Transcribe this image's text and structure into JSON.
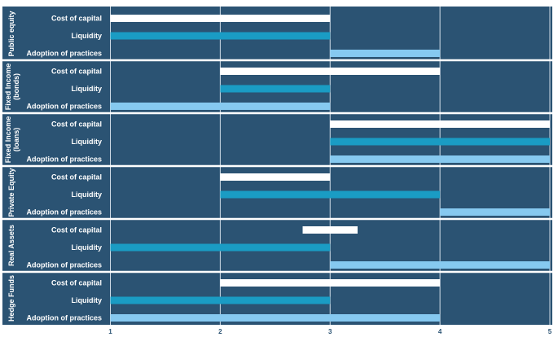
{
  "chart_data": {
    "type": "bar",
    "orientation": "horizontal floating range",
    "xlim": [
      1,
      5
    ],
    "x_ticks": [
      "1",
      "2",
      "3",
      "4",
      "5"
    ],
    "grid": true,
    "colors": {
      "background": "#2b5373",
      "Cost of capital": "#ffffff",
      "Liquidity": "#1a9cc4",
      "Adoption of practices": "#86c9f0"
    },
    "categories": [
      "Cost of capital",
      "Liquidity",
      "Adoption of practices"
    ],
    "groups": [
      {
        "name": "Public equity",
        "bars": [
          {
            "category": "Cost of capital",
            "start": 1,
            "end": 3
          },
          {
            "category": "Liquidity",
            "start": 1,
            "end": 3
          },
          {
            "category": "Adoption of practices",
            "start": 3,
            "end": 4
          }
        ]
      },
      {
        "name": "Fixed Income (bonds)",
        "bars": [
          {
            "category": "Cost of capital",
            "start": 2,
            "end": 4
          },
          {
            "category": "Liquidity",
            "start": 2,
            "end": 3
          },
          {
            "category": "Adoption of practices",
            "start": 1,
            "end": 3
          }
        ]
      },
      {
        "name": "Fixed Income (loans)",
        "bars": [
          {
            "category": "Cost of capital",
            "start": 3,
            "end": 5
          },
          {
            "category": "Liquidity",
            "start": 3,
            "end": 5
          },
          {
            "category": "Adoption of practices",
            "start": 3,
            "end": 5
          }
        ]
      },
      {
        "name": "Private Equity",
        "bars": [
          {
            "category": "Cost of capital",
            "start": 2,
            "end": 3
          },
          {
            "category": "Liquidity",
            "start": 2,
            "end": 4
          },
          {
            "category": "Adoption of practices",
            "start": 4,
            "end": 5
          }
        ]
      },
      {
        "name": "Real Assets",
        "bars": [
          {
            "category": "Cost of capital",
            "start": 2.75,
            "end": 3.25
          },
          {
            "category": "Liquidity",
            "start": 1,
            "end": 3
          },
          {
            "category": "Adoption of practices",
            "start": 3,
            "end": 5
          }
        ]
      },
      {
        "name": "Hedge Funds",
        "bars": [
          {
            "category": "Cost of capital",
            "start": 2,
            "end": 4
          },
          {
            "category": "Liquidity",
            "start": 1,
            "end": 3
          },
          {
            "category": "Adoption of practices",
            "start": 1,
            "end": 4
          }
        ]
      }
    ]
  }
}
